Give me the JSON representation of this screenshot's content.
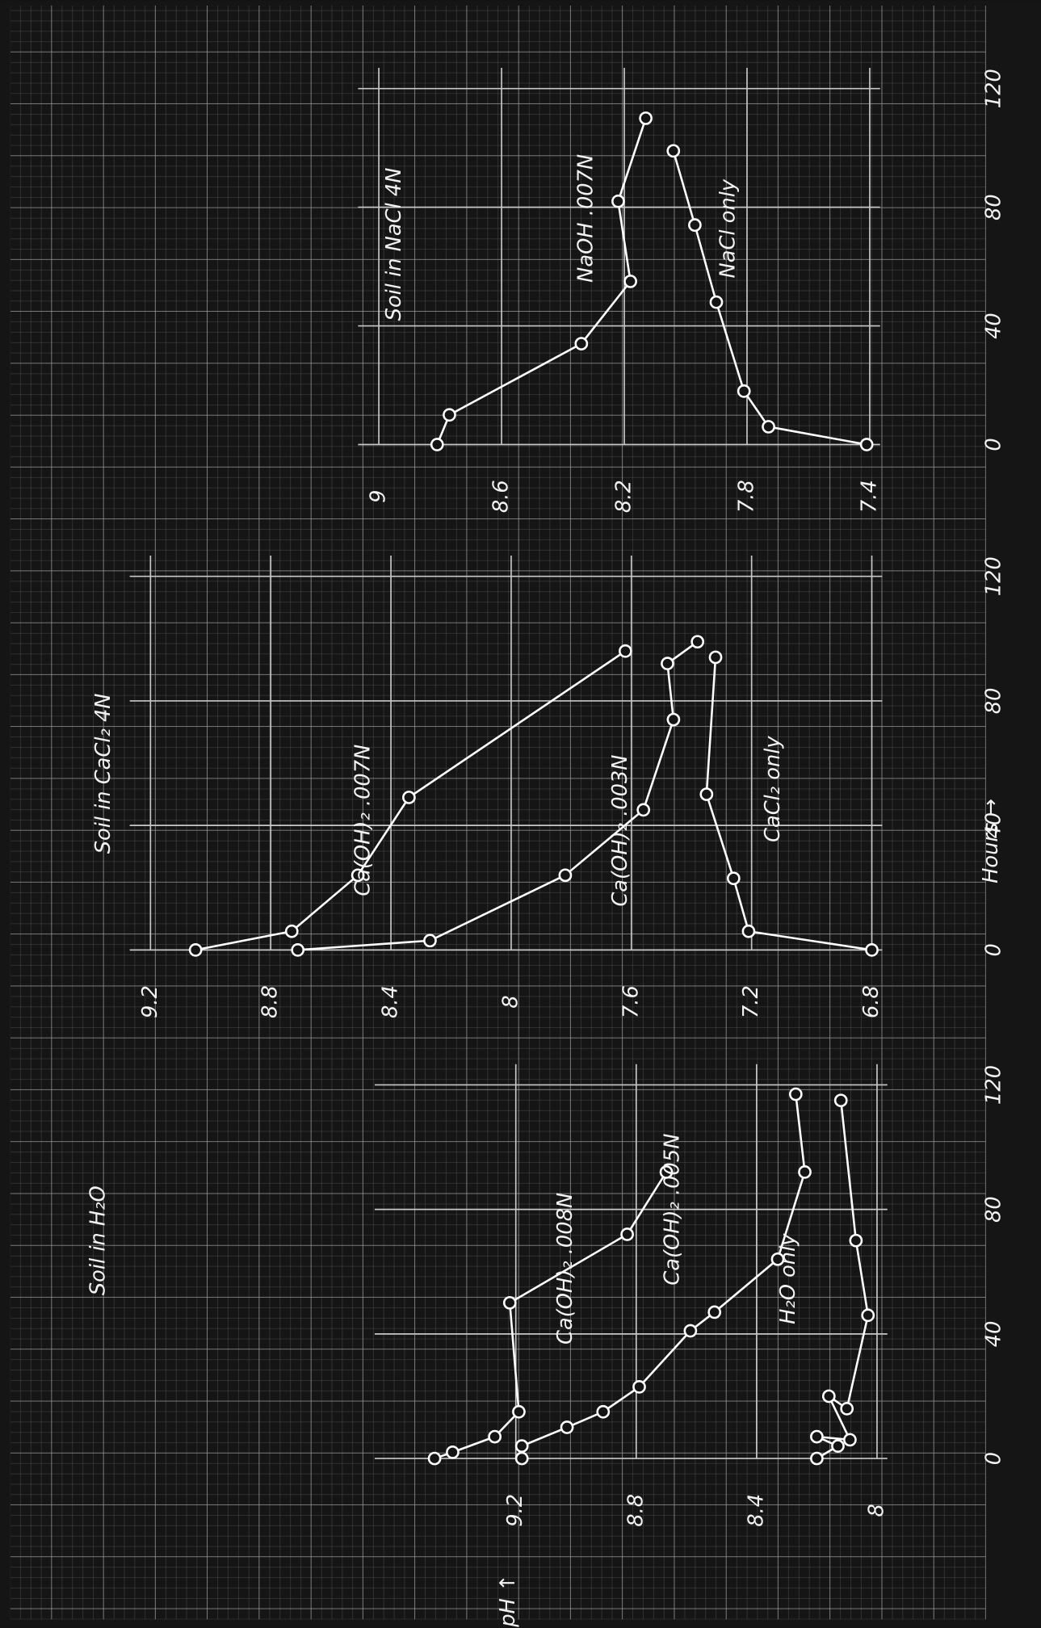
{
  "chart_data": [
    {
      "type": "line",
      "title": "Soil in H₂O",
      "ylabel": "pH ↑",
      "xlim": [
        0,
        120
      ],
      "xticks": [
        0,
        40,
        80,
        120
      ],
      "ylim": [
        8.0,
        9.6
      ],
      "yticks": [
        8.0,
        8.4,
        8.8,
        9.2
      ],
      "grid": true,
      "series": [
        {
          "name": "Ca(OH)₂ .008N",
          "color": "#ffffff",
          "x": [
            0,
            2,
            7,
            15,
            50,
            72,
            92
          ],
          "values": [
            9.47,
            9.41,
            9.27,
            9.19,
            9.22,
            8.83,
            8.7
          ]
        },
        {
          "name": "Ca(OH)₂ .005N",
          "color": "#ffffff",
          "x": [
            0,
            4,
            10,
            15,
            23,
            41,
            47,
            64,
            92,
            117
          ],
          "values": [
            9.18,
            9.18,
            9.03,
            8.91,
            8.79,
            8.62,
            8.54,
            8.33,
            8.24,
            8.27
          ]
        },
        {
          "name": "H₂O only",
          "color": "#ffffff",
          "x": [
            0,
            4,
            7,
            6,
            20,
            16,
            46,
            70,
            115
          ],
          "values": [
            8.2,
            8.13,
            8.2,
            8.09,
            8.16,
            8.1,
            8.03,
            8.07,
            8.12
          ]
        }
      ]
    },
    {
      "type": "line",
      "title": "Soil in CaCl₂ 4N",
      "xlabel": "Hours →",
      "xlim": [
        0,
        120
      ],
      "xticks": [
        0,
        40,
        80,
        120
      ],
      "ylim": [
        6.8,
        9.2
      ],
      "yticks": [
        6.8,
        7.2,
        7.6,
        8.0,
        8.4,
        8.8,
        9.2
      ],
      "grid": true,
      "series": [
        {
          "name": "Ca(OH)₂ .007N",
          "color": "#ffffff",
          "x": [
            0,
            6,
            24,
            49,
            96
          ],
          "values": [
            9.05,
            8.73,
            8.51,
            8.34,
            7.62
          ]
        },
        {
          "name": "Ca(OH)₂ .003N",
          "color": "#ffffff",
          "x": [
            0,
            3,
            24,
            45,
            74,
            92,
            99
          ],
          "values": [
            8.71,
            8.27,
            7.82,
            7.56,
            7.46,
            7.48,
            7.38
          ]
        },
        {
          "name": "CaCl₂ only",
          "color": "#ffffff",
          "x": [
            0,
            6,
            23,
            50,
            94
          ],
          "values": [
            6.8,
            7.21,
            7.26,
            7.35,
            7.32
          ]
        }
      ]
    },
    {
      "type": "line",
      "title": "Soil in NaCl 4N",
      "xlim": [
        0,
        120
      ],
      "xticks": [
        0,
        40,
        80,
        120
      ],
      "ylim": [
        7.4,
        9.0
      ],
      "yticks": [
        7.4,
        7.8,
        8.2,
        8.6,
        9.0
      ],
      "grid": true,
      "series": [
        {
          "name": "NaOH .007N",
          "color": "#ffffff",
          "x": [
            0,
            10,
            34,
            55,
            82,
            110
          ],
          "values": [
            8.81,
            8.77,
            8.34,
            8.18,
            8.22,
            8.13
          ]
        },
        {
          "name": "NaCl only",
          "color": "#ffffff",
          "x": [
            0,
            6,
            18,
            48,
            74,
            99
          ],
          "values": [
            7.41,
            7.73,
            7.81,
            7.9,
            7.97,
            8.04
          ]
        }
      ]
    }
  ]
}
